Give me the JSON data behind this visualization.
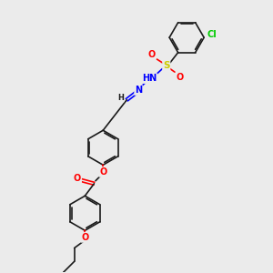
{
  "background_color": "#ebebeb",
  "bond_color": "#1a1a1a",
  "colors": {
    "O": "#ff0000",
    "N": "#0000ff",
    "S": "#cccc00",
    "Cl": "#00cc00",
    "C": "#1a1a1a",
    "H": "#1a1a1a"
  },
  "figsize": [
    3.0,
    3.0
  ],
  "dpi": 100
}
